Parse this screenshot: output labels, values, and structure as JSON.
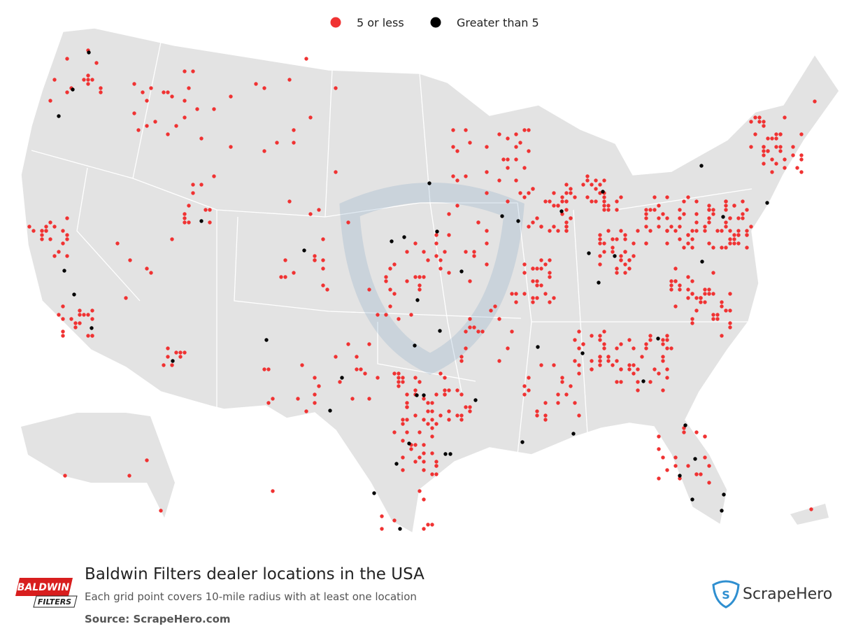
{
  "legend": {
    "items": [
      {
        "label": "5 or less",
        "color": "#f03232"
      },
      {
        "label": "Greater than 5",
        "color": "#000000"
      }
    ]
  },
  "footer": {
    "title": "Baldwin Filters dealer locations in the USA",
    "subtitle": "Each grid point covers 10-mile radius with at least one location",
    "source": "Source: ScrapeHero.com"
  },
  "logos": {
    "brand": [
      "BALDWIN",
      "FILTERS"
    ],
    "publisher": "ScrapeHero"
  }
}
